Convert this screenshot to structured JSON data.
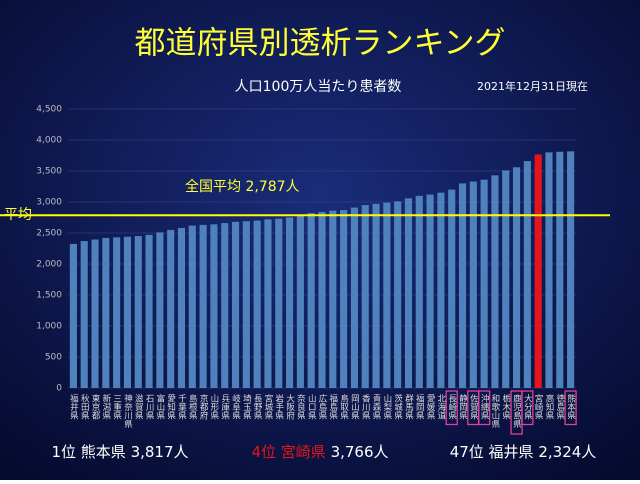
{
  "chart_data": {
    "type": "bar",
    "title": "都道府県別透析ランキング",
    "subtitle": "人口100万人当たり患者数",
    "date_note": "2021年12月31日現在",
    "categories": [
      "福井県",
      "秋田県",
      "東京都",
      "新潟県",
      "三重県",
      "神奈川県",
      "滋賀県",
      "石川県",
      "富山県",
      "愛知県",
      "千葉県",
      "島根県",
      "京都府",
      "山形県",
      "兵庫県",
      "岐阜県",
      "埼玉県",
      "長野県",
      "宮城県",
      "岩手県",
      "大阪府",
      "奈良県",
      "山口県",
      "広島県",
      "福島県",
      "鳥取県",
      "岡山県",
      "香川県",
      "青森県",
      "山梨県",
      "茨城県",
      "群馬県",
      "福岡県",
      "愛媛県",
      "北海道",
      "長崎県",
      "静岡県",
      "佐賀県",
      "沖縄県",
      "和歌山県",
      "栃木県",
      "鹿児島県",
      "大分県",
      "宮崎県",
      "高知県",
      "徳島県",
      "熊本県"
    ],
    "values": [
      2324,
      2370,
      2395,
      2420,
      2430,
      2440,
      2450,
      2470,
      2510,
      2550,
      2580,
      2620,
      2630,
      2640,
      2660,
      2680,
      2690,
      2700,
      2720,
      2730,
      2750,
      2780,
      2820,
      2840,
      2860,
      2870,
      2910,
      2950,
      2970,
      2990,
      3010,
      3060,
      3100,
      3120,
      3150,
      3200,
      3300,
      3330,
      3360,
      3430,
      3510,
      3560,
      3660,
      3766,
      3800,
      3810,
      3817
    ],
    "color": "#4f81bd",
    "emphasis_index": 43,
    "emphasis_color": "#e8141c",
    "highlighted_indices": [
      35,
      37,
      38,
      41,
      42,
      46
    ],
    "highlight_color": "#e0409a",
    "ylim": [
      0,
      4500
    ],
    "yticks": [
      0,
      {
        "value": 500,
        "label": "500"
      },
      {
        "value": 1000,
        "label": "1,000"
      },
      {
        "value": 1500,
        "label": "1,500"
      },
      {
        "value": 2000,
        "label": "2,000"
      },
      {
        "value": 2500,
        "label": "2,500"
      },
      {
        "value": 3000,
        "label": "3,000"
      },
      {
        "value": 3500,
        "label": "3,500"
      },
      {
        "value": 4000,
        "label": "4,000"
      },
      {
        "value": 4500,
        "label": "4,500"
      }
    ],
    "grid": true,
    "average": 2787,
    "average_label": "全国平均 2,787人",
    "average_side_label": "平均",
    "footer": [
      {
        "label": "1位 熊本県",
        "value": "3,817人"
      },
      {
        "label": "4位 宮崎県",
        "value": "3,766人"
      },
      {
        "label": "47位 福井県",
        "value": "2,324人"
      }
    ]
  }
}
